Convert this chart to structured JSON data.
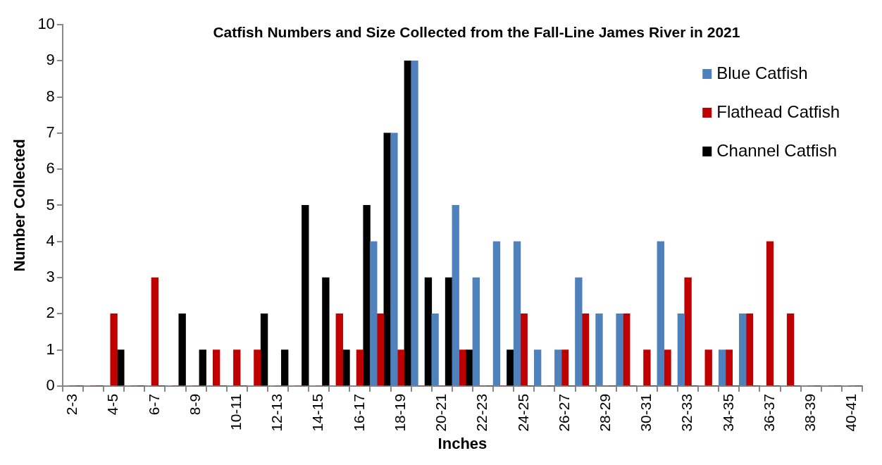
{
  "chart_data": {
    "type": "bar",
    "title": "Catfish Numbers and Size Collected from the Fall-Line James River in 2021",
    "xlabel": "Inches",
    "ylabel": "Number Collected",
    "categories": [
      "2-3",
      null,
      "4-5",
      null,
      "6-7",
      null,
      "8-9",
      null,
      "10-11",
      null,
      "12-13",
      null,
      "14-15",
      null,
      "16-17",
      null,
      "18-19",
      null,
      "20-21",
      null,
      "22-23",
      null,
      "24-25",
      null,
      "26-27",
      null,
      "28-29",
      null,
      "30-31",
      null,
      "32-33",
      null,
      "34-35",
      null,
      "36-37",
      null,
      "38-39",
      null,
      "40-41"
    ],
    "series": [
      {
        "name": "Blue Catfish",
        "color": "#4f81bd",
        "values": [
          0,
          0,
          0,
          0,
          0,
          0,
          0,
          0,
          0,
          0,
          0,
          0,
          0,
          0,
          0,
          4,
          7,
          9,
          2,
          5,
          3,
          4,
          4,
          1,
          1,
          3,
          2,
          2,
          0,
          4,
          2,
          0,
          1,
          2,
          0,
          0,
          0,
          0,
          0
        ]
      },
      {
        "name": "Flathead Catfish",
        "color": "#c00000",
        "values": [
          0,
          0,
          2,
          0,
          3,
          0,
          0,
          1,
          1,
          1,
          0,
          0,
          0,
          2,
          1,
          2,
          1,
          0,
          0,
          1,
          0,
          0,
          2,
          0,
          1,
          2,
          0,
          2,
          1,
          1,
          3,
          1,
          1,
          2,
          4,
          2,
          0,
          0,
          0
        ]
      },
      {
        "name": "Channel Catfish",
        "color": "#000000",
        "values": [
          0,
          0,
          1,
          0,
          0,
          2,
          1,
          0,
          0,
          2,
          1,
          5,
          3,
          1,
          5,
          7,
          9,
          3,
          3,
          1,
          0,
          1,
          0,
          0,
          0,
          0,
          0,
          0,
          0,
          0,
          0,
          0,
          0,
          0,
          0,
          0,
          0,
          0,
          0
        ]
      }
    ],
    "ylim": [
      0,
      10
    ],
    "yticks": [
      0,
      1,
      2,
      3,
      4,
      5,
      6,
      7,
      8,
      9,
      10
    ],
    "grid": false,
    "legend": "top right"
  }
}
